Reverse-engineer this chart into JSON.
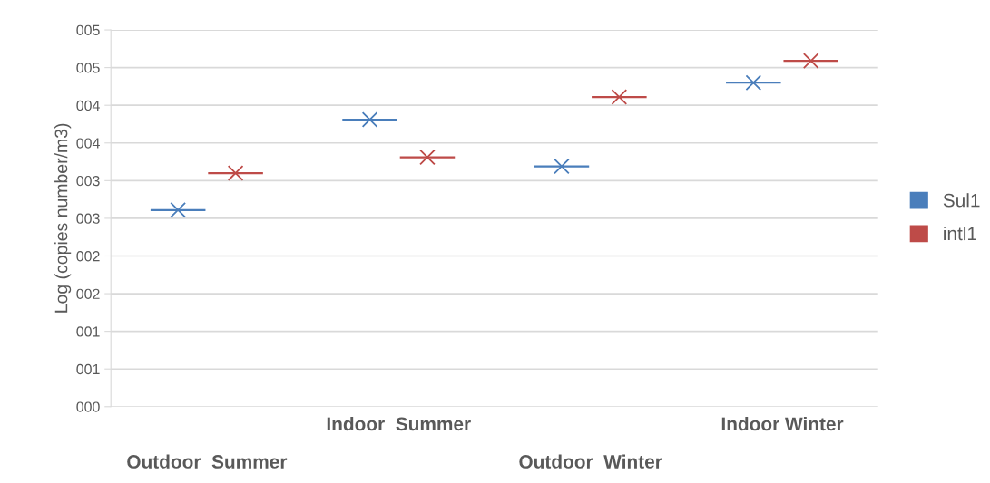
{
  "chart_data": {
    "type": "scatter",
    "ylabel": "Log (copies number/m3)",
    "categories": [
      "Outdoor  Summer",
      "Indoor  Summer",
      "Outdoor  Winter",
      "Indoor Winter"
    ],
    "series": [
      {
        "name": "Sul1",
        "color": "#4a7ebb",
        "values": [
          2.61,
          3.81,
          3.19,
          4.3
        ]
      },
      {
        "name": "intl1",
        "color": "#be4b48",
        "values": [
          3.1,
          3.31,
          4.11,
          4.59
        ]
      }
    ],
    "ylim": [
      0,
      5
    ],
    "yticks": [
      {
        "value": 0,
        "label": "000"
      },
      {
        "value": 0.5,
        "label": "001"
      },
      {
        "value": 1,
        "label": "001"
      },
      {
        "value": 1.5,
        "label": "002"
      },
      {
        "value": 2,
        "label": "002"
      },
      {
        "value": 2.5,
        "label": "003"
      },
      {
        "value": 3,
        "label": "003"
      },
      {
        "value": 3.5,
        "label": "004"
      },
      {
        "value": 4,
        "label": "004"
      },
      {
        "value": 4.5,
        "label": "005"
      },
      {
        "value": 5,
        "label": "005"
      }
    ],
    "grid": "y",
    "legend": "right",
    "marker": "cross"
  }
}
